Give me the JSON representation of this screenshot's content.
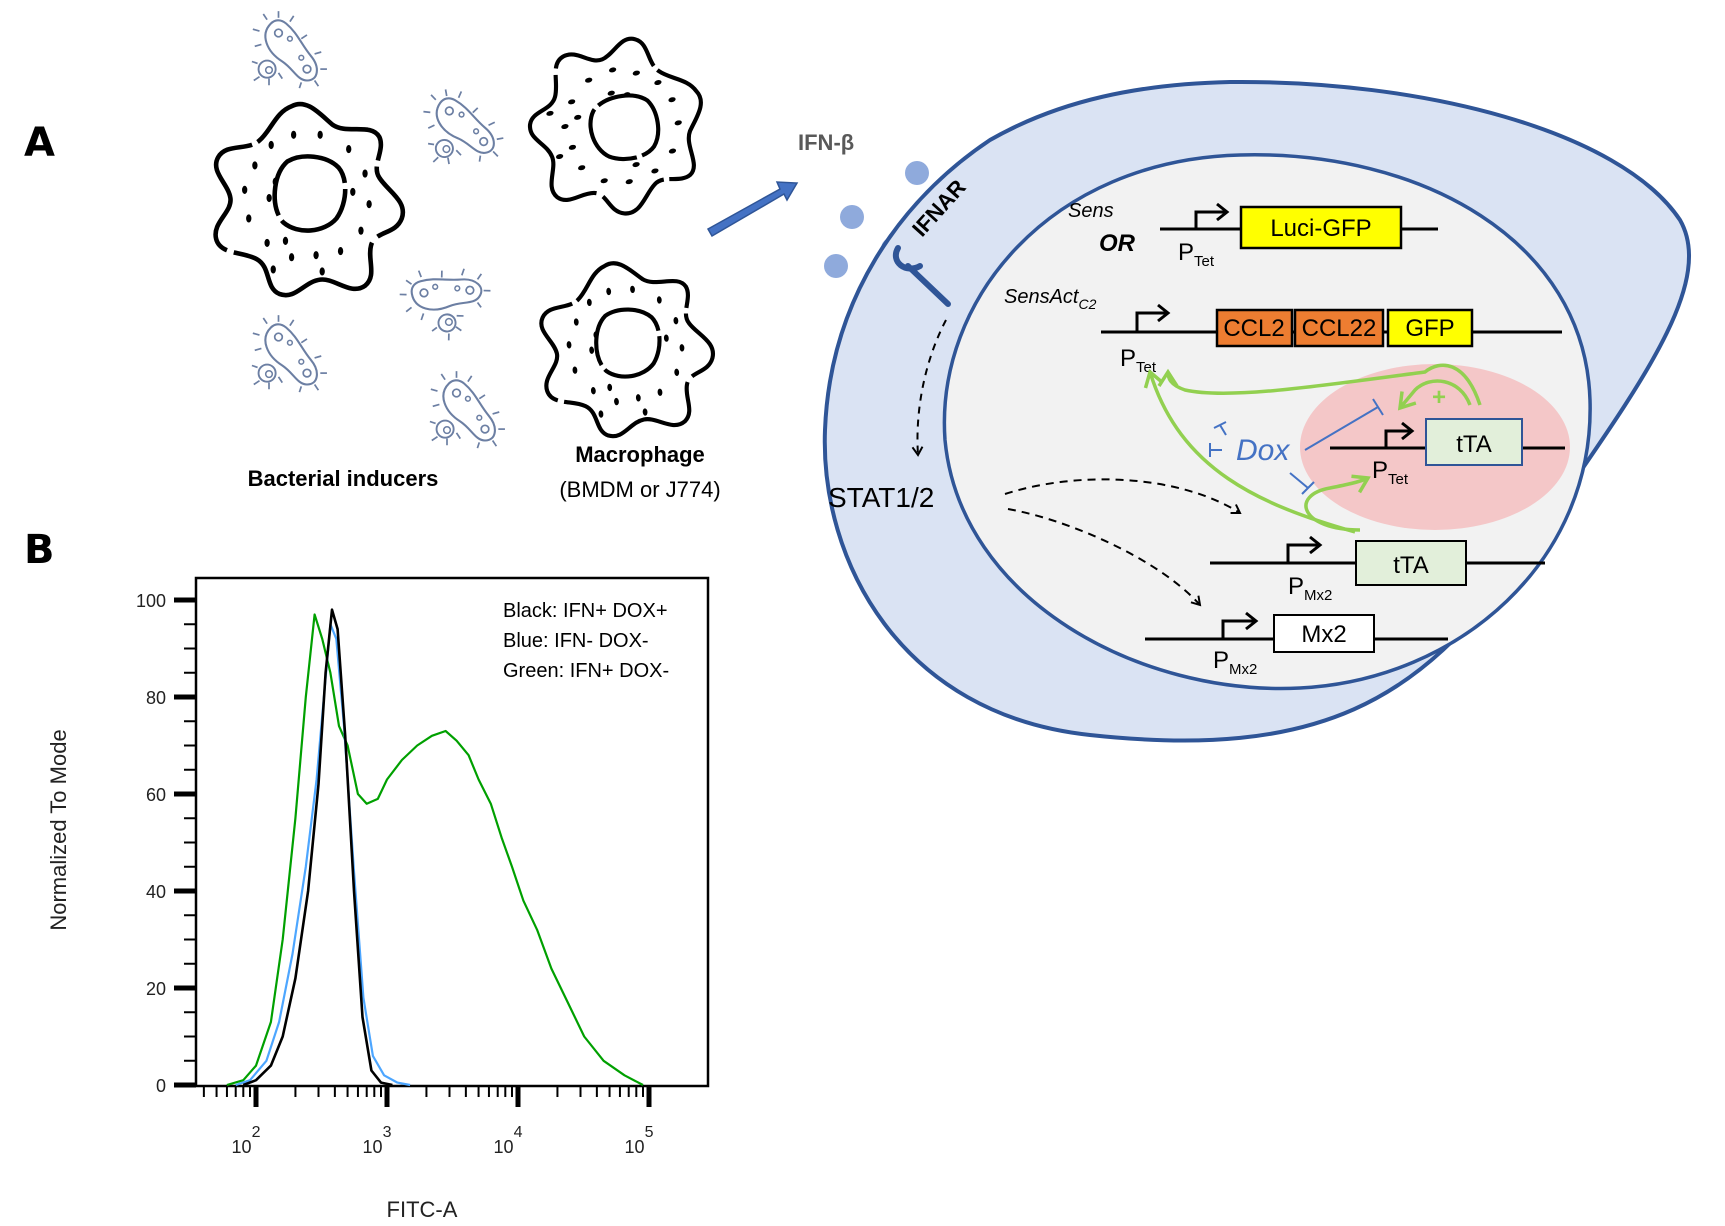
{
  "panels": {
    "a": {
      "label": "A",
      "bacteria_label": "Bacterial inducers",
      "macrophage_label": "Macrophage",
      "macrophage_sublabel": "(BMDM or J774)",
      "cytokine_label": "IFN-β",
      "receptor_label": "IFNAR",
      "signal_label": "STAT1/2",
      "dox_label": "Dox",
      "plus_label": "+",
      "constructs": {
        "sens": {
          "name": "Sens",
          "or_label": "OR",
          "promoter": "P",
          "promoter_sub": "Tet",
          "genes": [
            "Luci-GFP"
          ]
        },
        "sensact": {
          "name": "SensAct",
          "name_sub": "C2",
          "promoter": "P",
          "promoter_sub": "Tet",
          "genes": [
            "CCL2",
            "CCL22",
            "GFP"
          ]
        },
        "loop": {
          "promoter": "P",
          "promoter_sub": "Tet",
          "genes": [
            "tTA"
          ]
        },
        "mx2_tta": {
          "promoter": "P",
          "promoter_sub": "Mx2",
          "genes": [
            "tTA"
          ]
        },
        "mx2": {
          "promoter": "P",
          "promoter_sub": "Mx2",
          "genes": [
            "Mx2"
          ]
        }
      },
      "colors": {
        "outer_cell_fill": "#dae3f3",
        "cell_border": "#2f5597",
        "nucleus_fill": "#f2f2f2",
        "feedback_region": "#f4c7c8",
        "activation_arrow": "#92d050",
        "inhibition": "#4472c4",
        "ifn_dots": "#8faadc",
        "bacteria": "#6c7fa3",
        "luci_gfp": "#ffff00",
        "ccl": "#ed7d31",
        "tta": "#e2efda"
      }
    },
    "b": {
      "label": "B"
    }
  },
  "chart_data": {
    "type": "line",
    "title": "",
    "xlabel": "FITC-A",
    "ylabel": "Normalized To Mode",
    "xscale": "log",
    "xlim": [
      40,
      120000
    ],
    "ylim": [
      0,
      100
    ],
    "x_ticks": [
      "10^2",
      "10^3",
      "10^4",
      "10^5"
    ],
    "y_ticks": [
      0,
      20,
      40,
      60,
      80,
      100
    ],
    "grid": false,
    "legend_position": "top-right (text annotation)",
    "legend": [
      "Black: IFN+ DOX+",
      "Blue: IFN- DOX-",
      "Green: IFN+ DOX-"
    ],
    "series": [
      {
        "name": "Black: IFN+ DOX+",
        "color": "#000000",
        "x": [
          80,
          100,
          130,
          160,
          200,
          250,
          300,
          340,
          380,
          420,
          480,
          560,
          650,
          760,
          900,
          1100
        ],
        "y": [
          0,
          1,
          4,
          10,
          22,
          40,
          62,
          85,
          98,
          94,
          72,
          40,
          14,
          3,
          0.5,
          0
        ]
      },
      {
        "name": "Blue: IFN- DOX-",
        "color": "#4da6ff",
        "x": [
          70,
          90,
          120,
          150,
          190,
          240,
          290,
          330,
          370,
          410,
          470,
          560,
          660,
          780,
          950,
          1200,
          1500
        ],
        "y": [
          0,
          1,
          5,
          13,
          27,
          45,
          63,
          80,
          95,
          92,
          74,
          44,
          18,
          6,
          2,
          0.5,
          0
        ]
      },
      {
        "name": "Green: IFN+ DOX-",
        "color": "#00a000",
        "x": [
          60,
          80,
          100,
          130,
          160,
          200,
          240,
          280,
          320,
          370,
          430,
          500,
          600,
          700,
          850,
          1000,
          1300,
          1700,
          2200,
          2800,
          3400,
          4200,
          5000,
          6200,
          7500,
          9000,
          11000,
          14000,
          18000,
          24000,
          32000,
          45000,
          65000,
          90000
        ],
        "y": [
          0,
          1,
          4,
          13,
          30,
          55,
          80,
          97,
          92,
          85,
          74,
          70,
          60,
          58,
          59,
          63,
          67,
          70,
          72,
          73,
          71,
          68,
          63,
          58,
          51,
          45,
          38,
          32,
          24,
          17,
          10,
          5,
          2,
          0
        ]
      }
    ]
  }
}
